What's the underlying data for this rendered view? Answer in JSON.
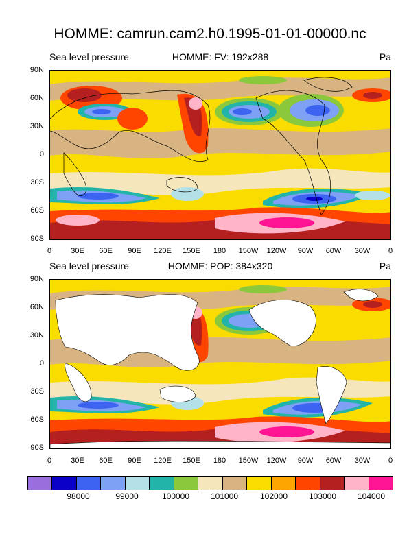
{
  "title": "HOMME: camrun.cam2.h0.1995-01-01-00000.nc",
  "panels": [
    {
      "left_label": "Sea level pressure",
      "center_label": "HOMME:  FV: 192x288",
      "right_label": "Pa"
    },
    {
      "left_label": "Sea level pressure",
      "center_label": "HOMME: POP: 384x320",
      "right_label": "Pa"
    }
  ],
  "lat_ticks": [
    "90N",
    "60N",
    "30N",
    "0",
    "30S",
    "60S",
    "90S"
  ],
  "lon_ticks": [
    "0",
    "30E",
    "60E",
    "90E",
    "120E",
    "150E",
    "180",
    "150W",
    "120W",
    "90W",
    "60W",
    "30W",
    "0"
  ],
  "colorbar": {
    "colors": [
      "#9a6fdc",
      "#0a00c8",
      "#3c64f0",
      "#7ea0f5",
      "#b4e0e8",
      "#22b4a8",
      "#8cc83c",
      "#f5e6bc",
      "#d7b482",
      "#fadc00",
      "#ffa500",
      "#ff4500",
      "#b42020",
      "#ffb4c8",
      "#ff1493"
    ],
    "labels": [
      "98000",
      "99000",
      "100000",
      "101000",
      "102000",
      "103000",
      "104000"
    ]
  },
  "chart_data": [
    {
      "type": "heatmap",
      "title": "HOMME: camrun.cam2.h0.1995-01-01-00000.nc",
      "subtitle": "HOMME:  FV: 192x288",
      "left_label": "Sea level pressure",
      "units": "Pa",
      "x_range": [
        0,
        360
      ],
      "y_range": [
        -90,
        90
      ],
      "contour_levels": [
        97500,
        98000,
        98500,
        99000,
        99500,
        100000,
        100500,
        101000,
        101500,
        102000,
        102500,
        103000,
        103500,
        104000
      ],
      "land_masked": false
    },
    {
      "type": "heatmap",
      "title": "HOMME: camrun.cam2.h0.1995-01-01-00000.nc",
      "subtitle": "HOMME: POP: 384x320",
      "left_label": "Sea level pressure",
      "units": "Pa",
      "x_range": [
        0,
        360
      ],
      "y_range": [
        -90,
        90
      ],
      "contour_levels": [
        97500,
        98000,
        98500,
        99000,
        99500,
        100000,
        100500,
        101000,
        101500,
        102000,
        102500,
        103000,
        103500,
        104000
      ],
      "land_masked": true
    }
  ]
}
